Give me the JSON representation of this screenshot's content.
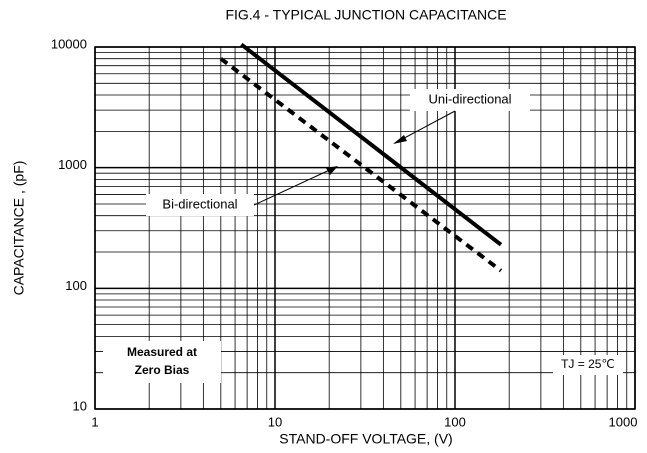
{
  "chart_data": {
    "type": "line",
    "title": "FIG.4 - TYPICAL JUNCTION CAPACITANCE",
    "xlabel": "STAND-OFF VOLTAGE, (V)",
    "ylabel": "CAPACITANCE , (pF)",
    "xlim": [
      1,
      1000
    ],
    "ylim": [
      10,
      10000
    ],
    "xticks": [
      1,
      10,
      100,
      1000
    ],
    "yticks": [
      10,
      100,
      1000,
      10000
    ],
    "xscale": "log",
    "yscale": "log",
    "grid": true,
    "series": [
      {
        "name": "Uni-directional",
        "color": "#000000",
        "style": "solid",
        "x": [
          6.5,
          180
        ],
        "values": [
          10500,
          230
        ]
      },
      {
        "name": "Bi-directional",
        "color": "#000000",
        "style": "dashed",
        "x": [
          5,
          180
        ],
        "values": [
          8000,
          140
        ]
      }
    ],
    "notes": {
      "condition": [
        "Measured at",
        "Zero Bias"
      ],
      "temperature": "TJ = 25℃"
    }
  }
}
